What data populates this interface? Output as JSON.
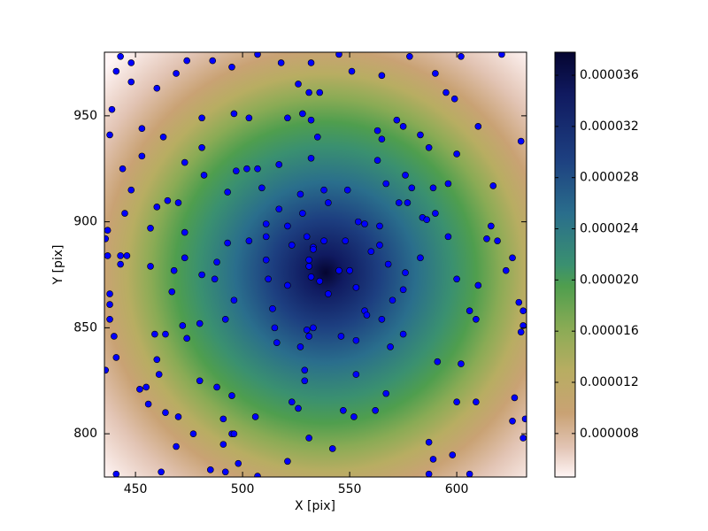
{
  "chart_data": {
    "type": "scatter",
    "xlabel": "X [pix]",
    "ylabel": "Y [pix]",
    "xlim": [
      435.5,
      632.6
    ],
    "ylim": [
      779.6,
      980
    ],
    "xticks": [
      450,
      500,
      550,
      600
    ],
    "yticks": [
      800,
      850,
      900,
      950
    ],
    "color": "#0000ff",
    "x": [
      443,
      448,
      441,
      448,
      460,
      469,
      474,
      486,
      495,
      507,
      518,
      532,
      545,
      551,
      565,
      578,
      590,
      595,
      599,
      602,
      621,
      526,
      531,
      536,
      439,
      438,
      453,
      463,
      481,
      496,
      503,
      521,
      528,
      532,
      535,
      563,
      565,
      572,
      575,
      583,
      587,
      600,
      610,
      630,
      444,
      448,
      453,
      473,
      481,
      482,
      497,
      502,
      507,
      517,
      532,
      563,
      576,
      567,
      577,
      579,
      589,
      596,
      617,
      493,
      465,
      509,
      527,
      538,
      549,
      573,
      445,
      437,
      436,
      437,
      446,
      457,
      460,
      470,
      473,
      493,
      503,
      511,
      511,
      517,
      521,
      523,
      528,
      540,
      530,
      533,
      538,
      548,
      554,
      557,
      560,
      564,
      564,
      584,
      586,
      590,
      596,
      614,
      619,
      616,
      623,
      626,
      443,
      438,
      438,
      443,
      457,
      468,
      473,
      467,
      488,
      481,
      487,
      496,
      492,
      511,
      512,
      514,
      521,
      531,
      533,
      532,
      536,
      540,
      545,
      550,
      553,
      557,
      558,
      565,
      570,
      575,
      568,
      576,
      583,
      600,
      610,
      606,
      609,
      629,
      631,
      531,
      438,
      440,
      441,
      459,
      464,
      472,
      474,
      480,
      515,
      516,
      527,
      530,
      531,
      533,
      546,
      553,
      569,
      575,
      591,
      602,
      630,
      631,
      436,
      452,
      455,
      460,
      461,
      456,
      464,
      470,
      480,
      488,
      495,
      491,
      495,
      506,
      523,
      526,
      529,
      529,
      553,
      547,
      552,
      562,
      567,
      600,
      609,
      627,
      626,
      632,
      441,
      462,
      469,
      477,
      485,
      491,
      492,
      496,
      498,
      507,
      521,
      531,
      542,
      587,
      587,
      589,
      598,
      606,
      631
    ],
    "values": [
      978,
      975,
      971,
      966,
      963,
      970,
      976,
      976,
      973,
      979,
      975,
      975,
      979,
      971,
      969,
      978,
      970,
      961,
      958,
      978,
      979,
      965,
      961,
      961,
      953,
      941,
      944,
      940,
      949,
      951,
      949,
      949,
      951,
      948,
      940,
      943,
      939,
      948,
      945,
      941,
      935,
      932,
      945,
      938,
      925,
      915,
      931,
      928,
      935,
      922,
      924,
      925,
      925,
      927,
      930,
      929,
      922,
      918,
      909,
      916,
      916,
      918,
      917,
      914,
      910,
      916,
      913,
      915,
      915,
      909,
      904,
      896,
      892,
      884,
      884,
      897,
      907,
      909,
      895,
      890,
      891,
      899,
      893,
      906,
      898,
      889,
      904,
      909,
      893,
      888,
      891,
      891,
      900,
      899,
      886,
      889,
      898,
      902,
      901,
      904,
      893,
      892,
      891,
      898,
      877,
      883,
      884,
      866,
      861,
      880,
      879,
      877,
      883,
      867,
      881,
      875,
      873,
      863,
      854,
      882,
      873,
      859,
      870,
      882,
      887,
      874,
      872,
      866,
      877,
      877,
      869,
      858,
      856,
      854,
      863,
      868,
      880,
      876,
      883,
      873,
      870,
      858,
      854,
      862,
      858,
      879,
      854,
      846,
      836,
      847,
      847,
      851,
      845,
      852,
      850,
      843,
      841,
      849,
      846,
      850,
      846,
      844,
      841,
      847,
      834,
      833,
      848,
      851,
      830,
      821,
      822,
      835,
      828,
      814,
      810,
      808,
      825,
      822,
      818,
      807,
      800,
      808,
      815,
      812,
      825,
      830,
      828,
      811,
      808,
      811,
      819,
      815,
      815,
      817,
      806,
      807,
      781,
      782,
      794,
      800,
      783,
      795,
      782,
      800,
      786,
      780,
      787,
      798,
      793,
      796,
      781,
      788,
      790,
      781,
      798
    ],
    "colorbar": {
      "lim": [
        4.6e-06,
        3.78e-05
      ],
      "ticks": [
        8e-06,
        1.2e-05,
        1.6e-05,
        {
          "value": 2e-05,
          "label": "0.000020"
        },
        2.4e-05,
        2.8e-05,
        3.2e-05,
        3.6e-05
      ]
    }
  }
}
